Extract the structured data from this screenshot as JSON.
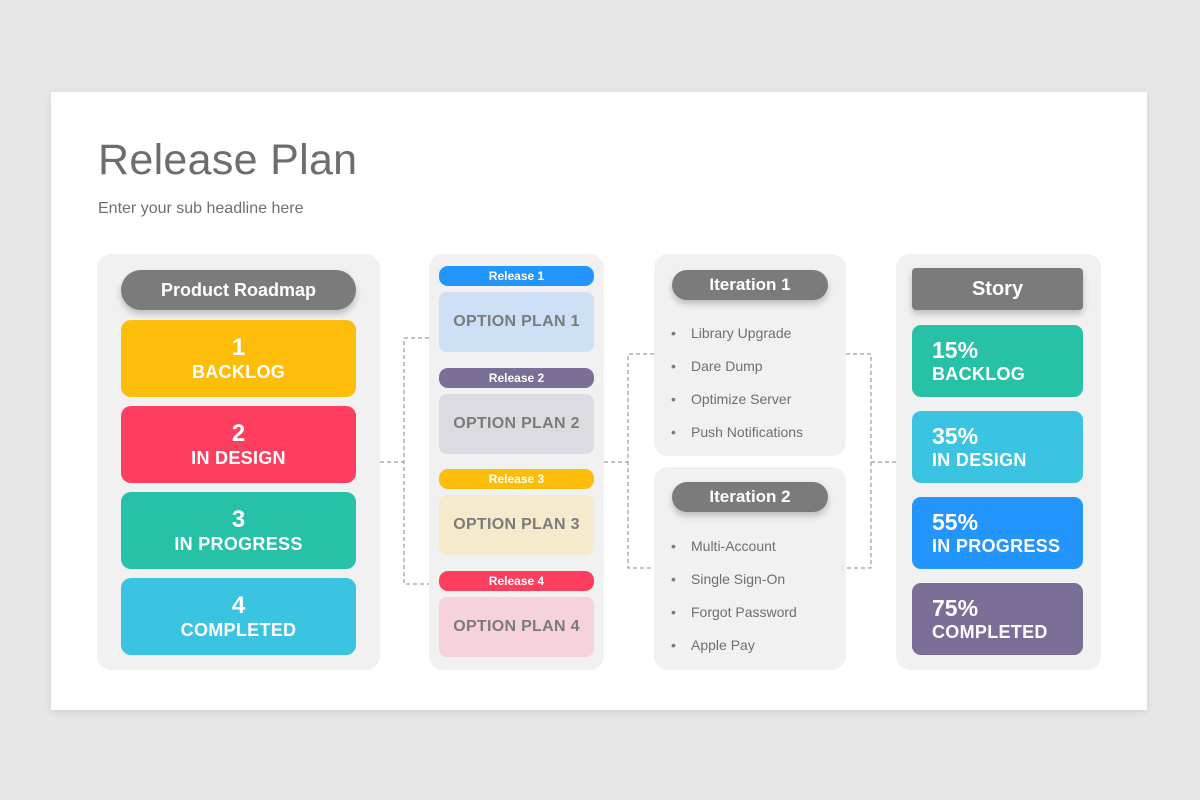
{
  "header": {
    "title": "Release Plan",
    "subtitle": "Enter your sub headline here"
  },
  "roadmap": {
    "heading": "Product Roadmap",
    "items": [
      {
        "num": "1",
        "label": "BACKLOG",
        "color": "#fdbe0b"
      },
      {
        "num": "2",
        "label": "IN DESIGN",
        "color": "#fe3e5f"
      },
      {
        "num": "3",
        "label": "IN PROGRESS",
        "color": "#27c1a8"
      },
      {
        "num": "4",
        "label": "COMPLETED",
        "color": "#3ac4e2"
      }
    ]
  },
  "releases": {
    "items": [
      {
        "tag": "Release 1",
        "plan": "OPTION PLAN 1",
        "tag_color": "#2395fc",
        "plan_color": "#cddff4"
      },
      {
        "tag": "Release 2",
        "plan": "OPTION PLAN 2",
        "tag_color": "#7b6f97",
        "plan_color": "#dcdbe1"
      },
      {
        "tag": "Release 3",
        "plan": "OPTION PLAN 3",
        "tag_color": "#fdbe0b",
        "plan_color": "#f5ebcc"
      },
      {
        "tag": "Release 4",
        "plan": "OPTION PLAN 4",
        "tag_color": "#fe3e5f",
        "plan_color": "#f6d3da"
      }
    ]
  },
  "iterations": [
    {
      "heading": "Iteration  1",
      "items": [
        "Library Upgrade",
        "Dare Dump",
        "Optimize Server",
        "Push Notifications"
      ]
    },
    {
      "heading": "Iteration  2",
      "items": [
        "Multi-Account",
        "Single Sign-On",
        "Forgot Password",
        "Apple Pay"
      ]
    }
  ],
  "story": {
    "heading": "Story",
    "items": [
      {
        "pct": "15%",
        "label": "BACKLOG",
        "color": "#27c1a8"
      },
      {
        "pct": "35%",
        "label": "IN DESIGN",
        "color": "#3ac4e2"
      },
      {
        "pct": "55%",
        "label": "IN PROGRESS",
        "color": "#2395fc"
      },
      {
        "pct": "75%",
        "label": "COMPLETED",
        "color": "#7b6f97"
      }
    ]
  },
  "colors": {
    "pill_gray": "#7b7b7b",
    "panel_bg": "#f1f1f1",
    "connector": "#8a8a8a"
  }
}
